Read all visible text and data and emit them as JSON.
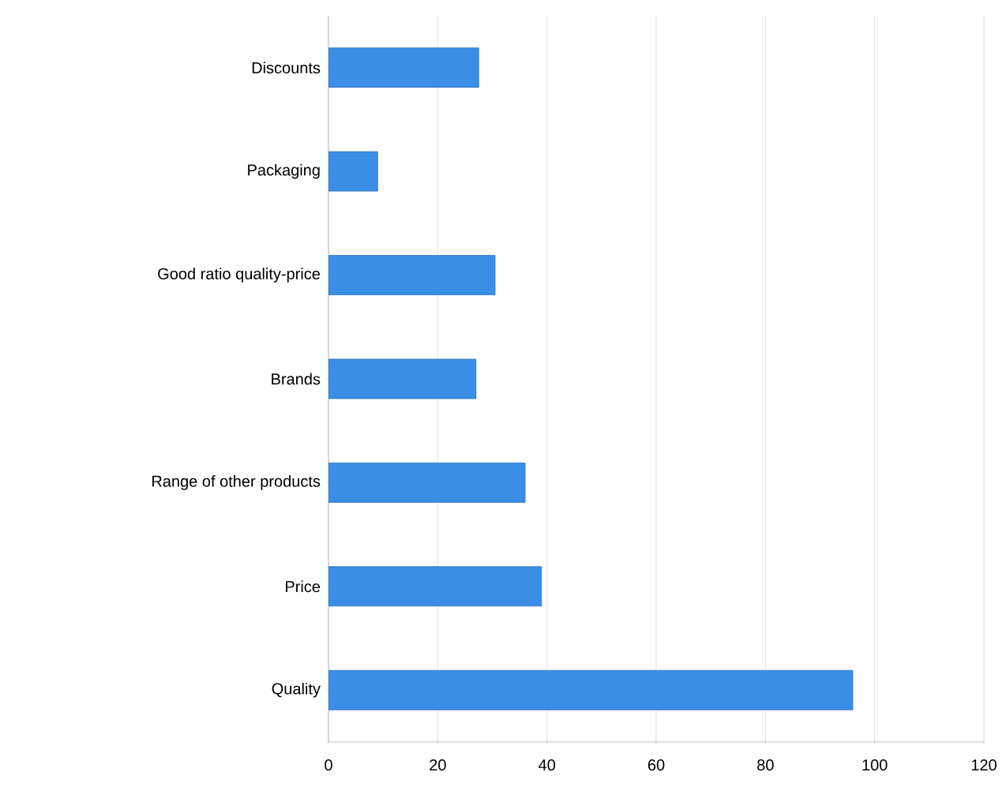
{
  "chart_data": {
    "type": "bar",
    "orientation": "horizontal",
    "categories": [
      "Discounts",
      "Packaging",
      "Good ratio quality-price",
      "Brands",
      "Range of other products",
      "Price",
      "Quality"
    ],
    "values": [
      27.5,
      9,
      30.5,
      27,
      36,
      39,
      96
    ],
    "color": "#3a8ee6",
    "xlim": [
      0,
      120
    ],
    "xticks": [
      0,
      20,
      40,
      60,
      80,
      100,
      120
    ],
    "grid": "x"
  }
}
